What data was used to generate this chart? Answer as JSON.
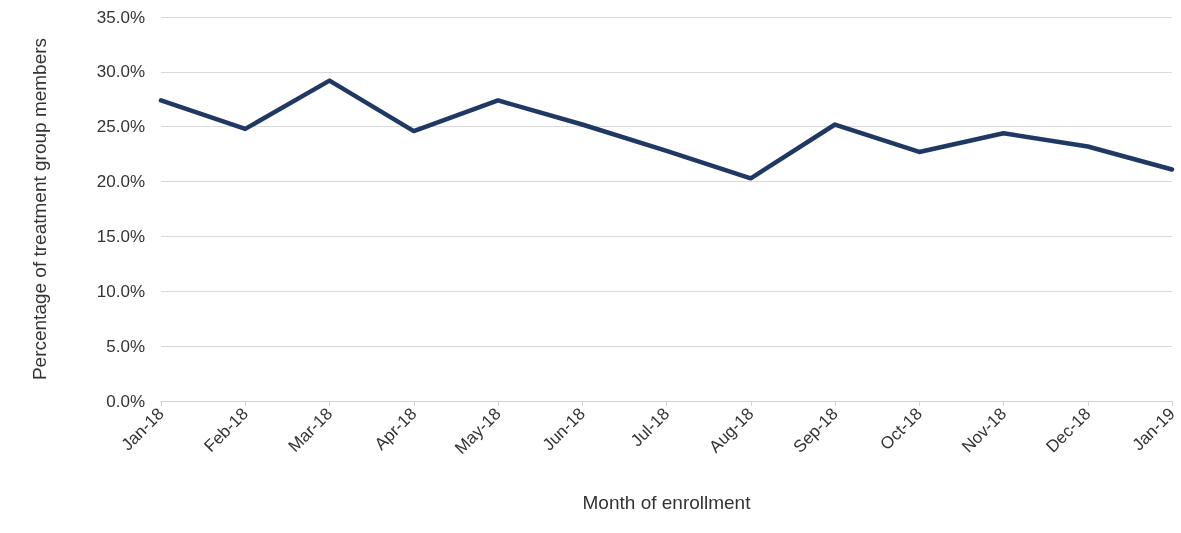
{
  "chart_data": {
    "type": "line",
    "xlabel": "Month of enrollment",
    "ylabel": "Percentage of treatment group members",
    "categories": [
      "Jan-18",
      "Feb-18",
      "Mar-18",
      "Apr-18",
      "May-18",
      "Jun-18",
      "Jul-18",
      "Aug-18",
      "Sep-18",
      "Oct-18",
      "Nov-18",
      "Dec-18",
      "Jan-19"
    ],
    "series": [
      {
        "color": "#1f3864",
        "values": [
          27.4,
          24.8,
          29.2,
          24.6,
          27.4,
          25.2,
          22.8,
          20.3,
          25.2,
          22.7,
          24.4,
          23.2,
          21.1
        ]
      }
    ],
    "ylim": [
      0,
      35
    ],
    "yticks": [
      {
        "value": 0,
        "label": "0.0%"
      },
      {
        "value": 5,
        "label": "5.0%"
      },
      {
        "value": 10,
        "label": "10.0%"
      },
      {
        "value": 15,
        "label": "15.0%"
      },
      {
        "value": 20,
        "label": "20.0%"
      },
      {
        "value": 25,
        "label": "25.0%"
      },
      {
        "value": 30,
        "label": "30.0%"
      },
      {
        "value": 35,
        "label": "35.0%"
      }
    ],
    "grid": "y",
    "marker": "none",
    "line_style": "solid"
  }
}
